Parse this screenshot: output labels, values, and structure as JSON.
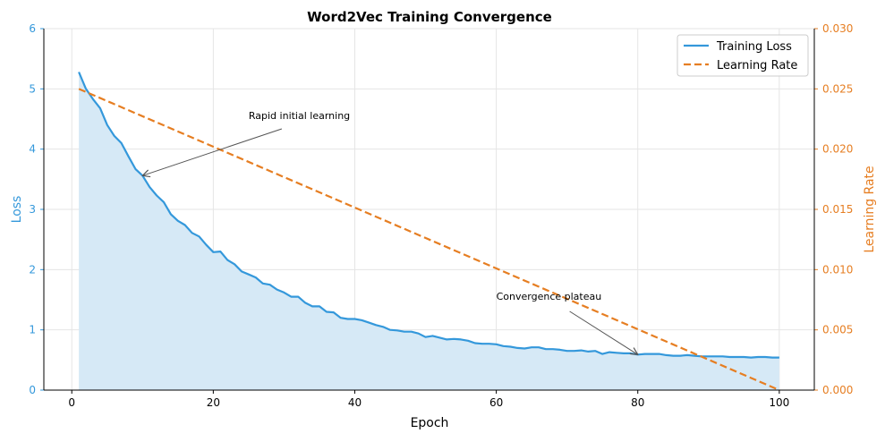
{
  "chart_data": {
    "type": "line",
    "title": "Word2Vec Training Convergence",
    "xlabel": "Epoch",
    "ylabel": "Loss",
    "y2label": "Learning Rate",
    "xlim": [
      -3.95,
      104.95
    ],
    "ylim": [
      0,
      6
    ],
    "y2lim": [
      0,
      0.03
    ],
    "xticks": [
      "0",
      "20",
      "40",
      "60",
      "80",
      "100"
    ],
    "yticks": [
      "0",
      "1",
      "2",
      "3",
      "4",
      "5",
      "6"
    ],
    "y2ticks": [
      "0.000",
      "0.005",
      "0.010",
      "0.015",
      "0.020",
      "0.025",
      "0.030"
    ],
    "grid": true,
    "legend_position": "top-right",
    "colors": {
      "loss": "#3498db",
      "lr": "#e67e22",
      "fill": "#d6e9f6"
    },
    "series": [
      {
        "name": "Training Loss",
        "axis": "left",
        "style": "solid-filled",
        "x_start": 1,
        "values": [
          5.28,
          5.0,
          4.83,
          4.68,
          4.4,
          4.22,
          4.1,
          3.88,
          3.67,
          3.56,
          3.37,
          3.23,
          3.12,
          2.92,
          2.81,
          2.74,
          2.61,
          2.55,
          2.41,
          2.29,
          2.3,
          2.16,
          2.09,
          1.97,
          1.92,
          1.87,
          1.77,
          1.75,
          1.67,
          1.62,
          1.55,
          1.55,
          1.45,
          1.39,
          1.39,
          1.3,
          1.29,
          1.2,
          1.18,
          1.18,
          1.16,
          1.12,
          1.08,
          1.05,
          1.0,
          0.99,
          0.97,
          0.97,
          0.94,
          0.88,
          0.9,
          0.87,
          0.84,
          0.85,
          0.84,
          0.82,
          0.78,
          0.77,
          0.77,
          0.76,
          0.73,
          0.72,
          0.7,
          0.69,
          0.71,
          0.71,
          0.68,
          0.68,
          0.67,
          0.65,
          0.65,
          0.66,
          0.64,
          0.65,
          0.6,
          0.63,
          0.62,
          0.61,
          0.61,
          0.59,
          0.6,
          0.6,
          0.6,
          0.58,
          0.57,
          0.57,
          0.58,
          0.57,
          0.56,
          0.56,
          0.56,
          0.56,
          0.55,
          0.55,
          0.55,
          0.54,
          0.55,
          0.55,
          0.54,
          0.54
        ]
      },
      {
        "name": "Learning Rate",
        "axis": "right",
        "style": "dashed",
        "points": [
          [
            1,
            0.025
          ],
          [
            100,
            0.0
          ]
        ]
      }
    ],
    "annotations": [
      {
        "text": "Rapid initial learning",
        "text_at": [
          25,
          4.5
        ],
        "arrow_to": [
          10,
          3.56
        ]
      },
      {
        "text": "Convergence plateau",
        "text_at": [
          60,
          1.5
        ],
        "arrow_to": [
          80,
          0.59
        ]
      }
    ]
  }
}
